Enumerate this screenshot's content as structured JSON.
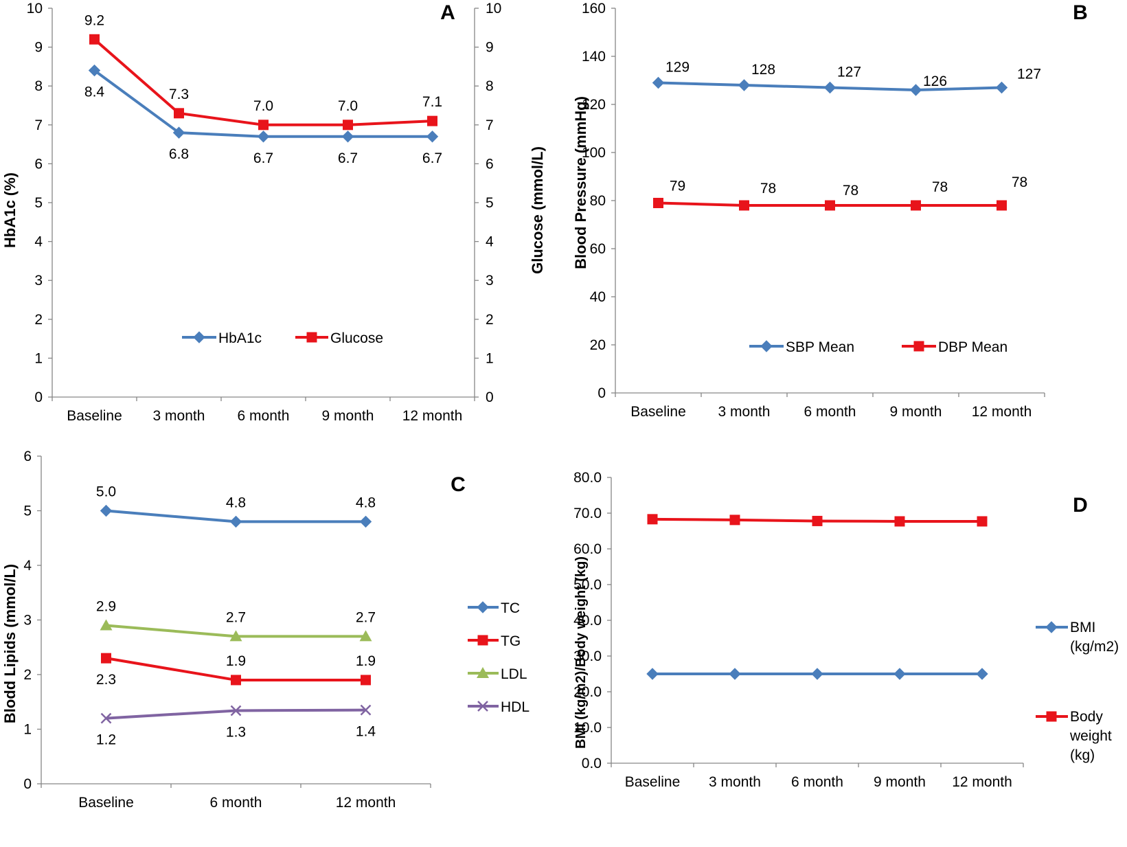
{
  "chart_data": [
    {
      "panel": "A",
      "type": "line",
      "categories": [
        "Baseline",
        "3 month",
        "6 month",
        "9 month",
        "12 month"
      ],
      "ylabel": "HbA1c (%)",
      "y2label": "Glucose (mmol/L)",
      "ylim": [
        0,
        10
      ],
      "y2lim": [
        0,
        10
      ],
      "y_ticks": [
        "0",
        "1",
        "2",
        "3",
        "4",
        "5",
        "6",
        "7",
        "8",
        "9",
        "10"
      ],
      "series": [
        {
          "name": "HbA1c",
          "values": [
            8.4,
            6.8,
            6.7,
            6.7,
            6.7
          ],
          "labels": [
            "8.4",
            "6.8",
            "6.7",
            "6.7",
            "6.7"
          ],
          "color": "#4A7EBB",
          "marker": "diamond"
        },
        {
          "name": "Glucose",
          "values": [
            9.2,
            7.3,
            7.0,
            7.0,
            7.1
          ],
          "labels": [
            "9.2",
            "7.3",
            "7.0",
            "7.0",
            "7.1"
          ],
          "color": "#E8141B",
          "marker": "square"
        }
      ],
      "legend": "bottom-center"
    },
    {
      "panel": "B",
      "type": "line",
      "categories": [
        "Baseline",
        "3 month",
        "6 month",
        "9 month",
        "12 month"
      ],
      "ylabel": "Blood Pressure (mmHg)",
      "ylim": [
        0,
        160
      ],
      "y_ticks": [
        "0",
        "20",
        "40",
        "60",
        "80",
        "100",
        "120",
        "140",
        "160"
      ],
      "series": [
        {
          "name": "SBP Mean",
          "values": [
            129,
            128,
            127,
            126,
            127
          ],
          "labels": [
            "129",
            "128",
            "127",
            "126",
            "127"
          ],
          "color": "#4A7EBB",
          "marker": "diamond"
        },
        {
          "name": "DBP Mean",
          "values": [
            79,
            78,
            78,
            78,
            78
          ],
          "labels": [
            "79",
            "78",
            "78",
            "78",
            "78"
          ],
          "color": "#E8141B",
          "marker": "square"
        }
      ],
      "legend": "bottom-center"
    },
    {
      "panel": "C",
      "type": "line",
      "categories": [
        "Baseline",
        "6 month",
        "12 month"
      ],
      "ylabel": "Blodd Lipids (mmol/L)",
      "ylim": [
        0,
        6
      ],
      "y_ticks": [
        "0",
        "1",
        "2",
        "3",
        "4",
        "5",
        "6"
      ],
      "series": [
        {
          "name": "TC",
          "values": [
            5.0,
            4.8,
            4.8
          ],
          "labels": [
            "5.0",
            "4.8",
            "4.8"
          ],
          "color": "#4A7EBB",
          "marker": "diamond"
        },
        {
          "name": "TG",
          "values": [
            2.3,
            1.9,
            1.9
          ],
          "labels": [
            "2.3",
            "1.9",
            "1.9"
          ],
          "color": "#E8141B",
          "marker": "square"
        },
        {
          "name": "LDL",
          "values": [
            2.9,
            2.7,
            2.7
          ],
          "labels": [
            "2.9",
            "2.7",
            "2.7"
          ],
          "color": "#9BBB59",
          "marker": "triangle"
        },
        {
          "name": "HDL",
          "values": [
            1.2,
            1.34,
            1.35
          ],
          "labels": [
            "1.2",
            "1.3",
            "1.4"
          ],
          "color": "#8064A2",
          "marker": "x"
        }
      ],
      "legend": "right"
    },
    {
      "panel": "D",
      "type": "line",
      "categories": [
        "Baseline",
        "3 month",
        "6 month",
        "9 month",
        "12 month"
      ],
      "ylabel": "BMI (kg/m2)/Body weight (kg)",
      "ylim": [
        0,
        80
      ],
      "y_ticks": [
        "0.0",
        "10.0",
        "20.0",
        "30.0",
        "40.0",
        "50.0",
        "60.0",
        "70.0",
        "80.0"
      ],
      "series": [
        {
          "name_lines": [
            "BMI",
            "(kg/m2)"
          ],
          "values": [
            25.0,
            25.0,
            25.0,
            25.0,
            25.0
          ],
          "color": "#4A7EBB",
          "marker": "diamond"
        },
        {
          "name_lines": [
            "Body",
            "weight",
            "(kg)"
          ],
          "values": [
            68.3,
            68.1,
            67.8,
            67.7,
            67.7
          ],
          "color": "#E8141B",
          "marker": "square"
        }
      ],
      "legend": "right"
    }
  ]
}
